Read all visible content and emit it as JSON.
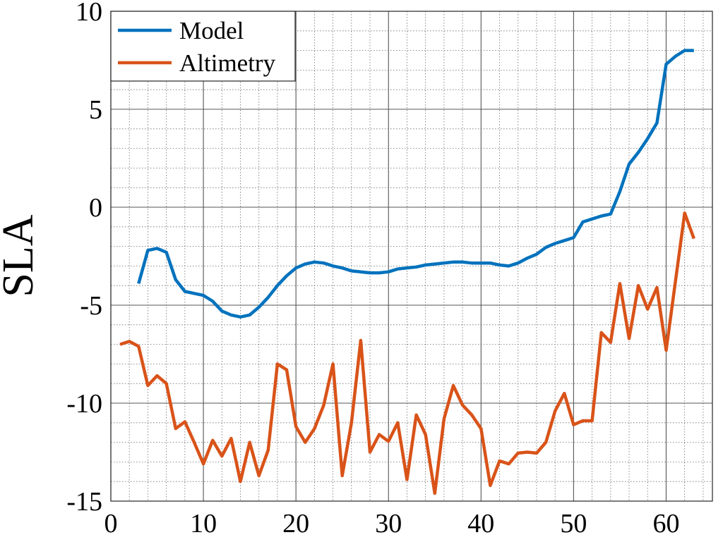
{
  "chart_data": {
    "type": "line",
    "title": "",
    "xlabel": "",
    "ylabel": "SLA",
    "xlim": [
      0,
      65
    ],
    "ylim": [
      -15,
      10
    ],
    "xticks": [
      0,
      10,
      20,
      30,
      40,
      50,
      60
    ],
    "yticks": [
      10,
      5,
      0,
      -5,
      -10,
      -15
    ],
    "xtick_labels": [
      "0",
      "10",
      "20",
      "30",
      "40",
      "50",
      "60"
    ],
    "ytick_labels": [
      "10",
      "5",
      "0",
      "-5",
      "-10",
      "-15"
    ],
    "grid": true,
    "minor_grid": true,
    "legend_position": "top-left",
    "series": [
      {
        "name": "Model",
        "color": "#0072BD",
        "x": [
          3,
          4,
          5,
          6,
          7,
          8,
          9,
          10,
          11,
          12,
          13,
          14,
          15,
          16,
          17,
          18,
          19,
          20,
          21,
          22,
          23,
          24,
          25,
          26,
          27,
          28,
          29,
          30,
          31,
          32,
          33,
          34,
          35,
          36,
          37,
          38,
          39,
          40,
          41,
          42,
          43,
          44,
          45,
          46,
          47,
          48,
          49,
          50,
          51,
          52,
          53,
          54,
          55,
          56,
          57,
          58,
          59,
          60,
          61,
          62,
          63
        ],
        "values": [
          -3.9,
          -2.2,
          -2.1,
          -2.3,
          -3.7,
          -4.3,
          -4.4,
          -4.5,
          -4.8,
          -5.3,
          -5.5,
          -5.6,
          -5.5,
          -5.1,
          -4.6,
          -4.0,
          -3.5,
          -3.1,
          -2.9,
          -2.8,
          -2.85,
          -3.0,
          -3.1,
          -3.25,
          -3.3,
          -3.35,
          -3.35,
          -3.3,
          -3.15,
          -3.1,
          -3.05,
          -2.95,
          -2.9,
          -2.85,
          -2.8,
          -2.8,
          -2.85,
          -2.85,
          -2.85,
          -2.95,
          -3.0,
          -2.85,
          -2.6,
          -2.4,
          -2.05,
          -1.85,
          -1.7,
          -1.55,
          -0.75,
          -0.6,
          -0.45,
          -0.35,
          0.8,
          2.2,
          2.8,
          3.5,
          4.3,
          7.3,
          7.7,
          8.0,
          8.0
        ]
      },
      {
        "name": "Altimetry",
        "color": "#D95319",
        "x": [
          1,
          2,
          3,
          4,
          5,
          6,
          7,
          8,
          9,
          10,
          11,
          12,
          13,
          14,
          15,
          16,
          17,
          18,
          19,
          20,
          21,
          22,
          23,
          24,
          25,
          26,
          27,
          28,
          29,
          30,
          31,
          32,
          33,
          34,
          35,
          36,
          37,
          38,
          39,
          40,
          41,
          42,
          43,
          44,
          45,
          46,
          47,
          48,
          49,
          50,
          51,
          52,
          53,
          54,
          55,
          56,
          57,
          58,
          59,
          60,
          61,
          62,
          63
        ],
        "values": [
          -7.0,
          -6.85,
          -7.1,
          -9.1,
          -8.6,
          -9.0,
          -11.3,
          -10.95,
          -12.0,
          -13.1,
          -11.9,
          -12.7,
          -11.8,
          -14.0,
          -12.0,
          -13.7,
          -12.4,
          -8.0,
          -8.3,
          -11.2,
          -12.0,
          -11.3,
          -10.1,
          -8.0,
          -13.7,
          -11.0,
          -6.8,
          -12.5,
          -11.6,
          -11.95,
          -11.0,
          -13.9,
          -10.6,
          -11.6,
          -14.6,
          -10.8,
          -9.1,
          -10.1,
          -10.6,
          -11.3,
          -14.2,
          -12.95,
          -13.1,
          -12.55,
          -12.5,
          -12.55,
          -12.0,
          -10.4,
          -9.5,
          -11.1,
          -10.9,
          -10.9,
          -6.4,
          -6.9,
          -3.9,
          -6.7,
          -4.0,
          -5.2,
          -4.1,
          -7.3,
          -3.8,
          -0.3,
          -1.6
        ]
      }
    ]
  }
}
